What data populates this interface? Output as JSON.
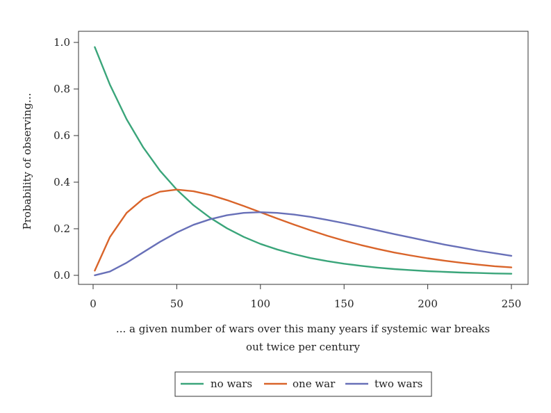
{
  "chart_data": {
    "type": "line",
    "xlabel_lines": [
      "... a given number of wars over this many years if systemic war breaks",
      "out twice per century"
    ],
    "ylabel": "Probability of observing...",
    "xlim": [
      0,
      250
    ],
    "ylim": [
      0,
      1
    ],
    "xticks": [
      0,
      50,
      100,
      150,
      200,
      250
    ],
    "yticks": [
      "0.0",
      "0.2",
      "0.4",
      "0.6",
      "0.8",
      "1.0"
    ],
    "grid": false,
    "legend_position": "bottom",
    "x": [
      1,
      10,
      20,
      30,
      40,
      50,
      60,
      70,
      80,
      90,
      100,
      110,
      120,
      130,
      140,
      150,
      160,
      170,
      180,
      190,
      200,
      210,
      220,
      230,
      240,
      250
    ],
    "series": [
      {
        "name": "no wars",
        "color": "#3aa57a",
        "values": [
          0.98,
          0.819,
          0.67,
          0.549,
          0.449,
          0.368,
          0.301,
          0.247,
          0.202,
          0.165,
          0.135,
          0.111,
          0.091,
          0.074,
          0.061,
          0.05,
          0.041,
          0.033,
          0.027,
          0.022,
          0.018,
          0.015,
          0.012,
          0.01,
          0.008,
          0.007
        ]
      },
      {
        "name": "one war",
        "color": "#d9642a",
        "values": [
          0.02,
          0.164,
          0.268,
          0.329,
          0.359,
          0.368,
          0.361,
          0.345,
          0.323,
          0.298,
          0.271,
          0.244,
          0.218,
          0.193,
          0.17,
          0.149,
          0.13,
          0.113,
          0.098,
          0.085,
          0.073,
          0.063,
          0.054,
          0.046,
          0.039,
          0.034
        ]
      },
      {
        "name": "two wars",
        "color": "#6870b8",
        "values": [
          0.0002,
          0.016,
          0.054,
          0.099,
          0.144,
          0.184,
          0.217,
          0.241,
          0.258,
          0.268,
          0.271,
          0.268,
          0.261,
          0.251,
          0.238,
          0.224,
          0.209,
          0.193,
          0.177,
          0.162,
          0.147,
          0.132,
          0.119,
          0.106,
          0.095,
          0.084
        ]
      }
    ]
  }
}
